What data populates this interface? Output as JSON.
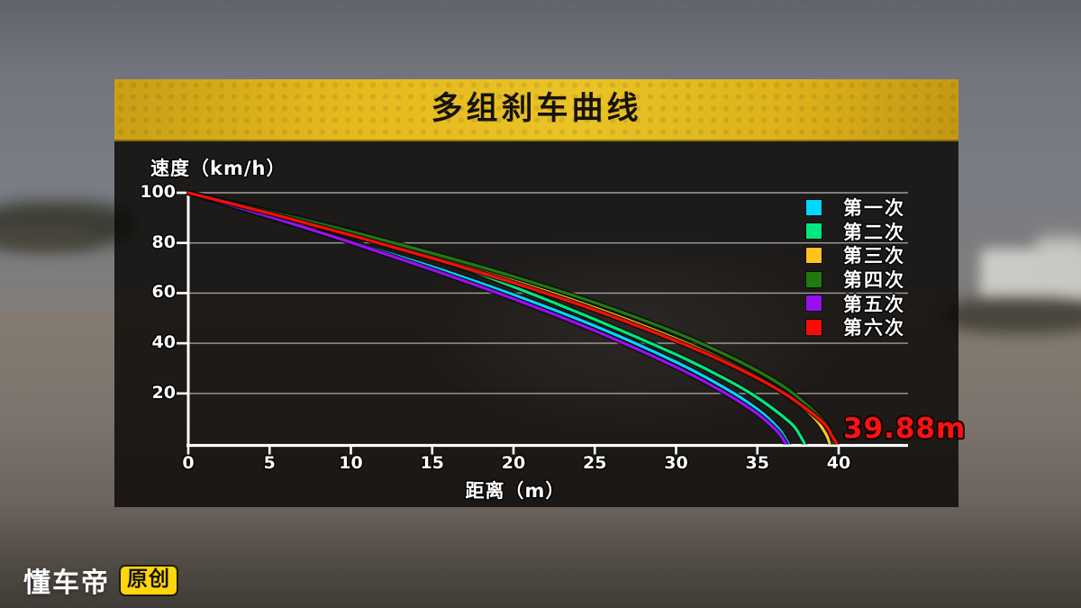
{
  "header": {
    "title": "多组刹车曲线"
  },
  "axes": {
    "y_title": "速度（km/h）",
    "x_title": "距离（m）"
  },
  "annotation": {
    "text": "39.88m",
    "color": "#f61310",
    "refers_to": "第六次"
  },
  "watermark": {
    "brand": "懂车帝",
    "badge": "原创"
  },
  "chart_data": {
    "type": "line",
    "title": "多组刹车曲线",
    "xlabel": "距离（m）",
    "ylabel": "速度（km/h）",
    "xlim": [
      0,
      44
    ],
    "ylim": [
      0,
      100
    ],
    "x_ticks": [
      0,
      5,
      10,
      15,
      20,
      25,
      30,
      35,
      40
    ],
    "y_ticks": [
      100,
      80,
      60,
      40,
      20
    ],
    "grid": "horizontal",
    "legend_position": "right",
    "axis_color": "#ffffff",
    "grid_color": "rgba(255,255,255,0.58)",
    "series": [
      {
        "name": "第一次",
        "color": "#00d7fe",
        "stopping_distance_m": 36.9,
        "points": [
          [
            0,
            100
          ],
          [
            5,
            90.2
          ],
          [
            10,
            80.5
          ],
          [
            15,
            70.5
          ],
          [
            20,
            59.3
          ],
          [
            25,
            46.9
          ],
          [
            30,
            32.5
          ],
          [
            33,
            22.2
          ],
          [
            35,
            13.7
          ],
          [
            36.3,
            6
          ],
          [
            36.9,
            0
          ]
        ]
      },
      {
        "name": "第二次",
        "color": "#00e87d",
        "stopping_distance_m": 37.9,
        "points": [
          [
            0,
            100
          ],
          [
            5,
            92.6
          ],
          [
            10,
            84.8
          ],
          [
            15,
            74.5
          ],
          [
            20,
            62.5
          ],
          [
            25,
            49.5
          ],
          [
            30,
            35.5
          ],
          [
            33,
            25.9
          ],
          [
            35,
            18.3
          ],
          [
            37,
            8.5
          ],
          [
            37.6,
            3.5
          ],
          [
            37.9,
            0
          ]
        ]
      },
      {
        "name": "第三次",
        "color": "#fec31f",
        "stopping_distance_m": 39.45,
        "points": [
          [
            0,
            100
          ],
          [
            5,
            92.1
          ],
          [
            10,
            83.7
          ],
          [
            15,
            74.7
          ],
          [
            20,
            65.0
          ],
          [
            25,
            54.2
          ],
          [
            30,
            41.8
          ],
          [
            33,
            33.1
          ],
          [
            35,
            26.4
          ],
          [
            37,
            18.4
          ],
          [
            38.5,
            10.3
          ],
          [
            39.2,
            4
          ],
          [
            39.45,
            0
          ]
        ]
      },
      {
        "name": "第四次",
        "color": "#217a10",
        "stopping_distance_m": 39.7,
        "points": [
          [
            0,
            100
          ],
          [
            5,
            92.5
          ],
          [
            10,
            84.5
          ],
          [
            15,
            75.9
          ],
          [
            20,
            66.6
          ],
          [
            25,
            56.2
          ],
          [
            30,
            44.2
          ],
          [
            33,
            35.6
          ],
          [
            35,
            29.0
          ],
          [
            37,
            21.0
          ],
          [
            39,
            9.6
          ],
          [
            39.5,
            4
          ],
          [
            39.7,
            0
          ]
        ]
      },
      {
        "name": "第五次",
        "color": "#9c0ef2",
        "stopping_distance_m": 36.75,
        "points": [
          [
            0,
            100
          ],
          [
            5,
            90.5
          ],
          [
            10,
            80.2
          ],
          [
            15,
            69.3
          ],
          [
            20,
            57.7
          ],
          [
            25,
            45.0
          ],
          [
            30,
            30.5
          ],
          [
            33,
            20.2
          ],
          [
            35,
            11.9
          ],
          [
            36.2,
            5
          ],
          [
            36.75,
            0
          ]
        ]
      },
      {
        "name": "第六次",
        "color": "#f50d06",
        "stopping_distance_m": 39.88,
        "points": [
          [
            0,
            100
          ],
          [
            5,
            91.8
          ],
          [
            10,
            83.1
          ],
          [
            15,
            73.9
          ],
          [
            20,
            64.1
          ],
          [
            25,
            53.2
          ],
          [
            30,
            40.9
          ],
          [
            33,
            32.5
          ],
          [
            35,
            26.1
          ],
          [
            37,
            18.6
          ],
          [
            39,
            8.7
          ],
          [
            39.6,
            3
          ],
          [
            39.88,
            0
          ]
        ]
      }
    ]
  }
}
